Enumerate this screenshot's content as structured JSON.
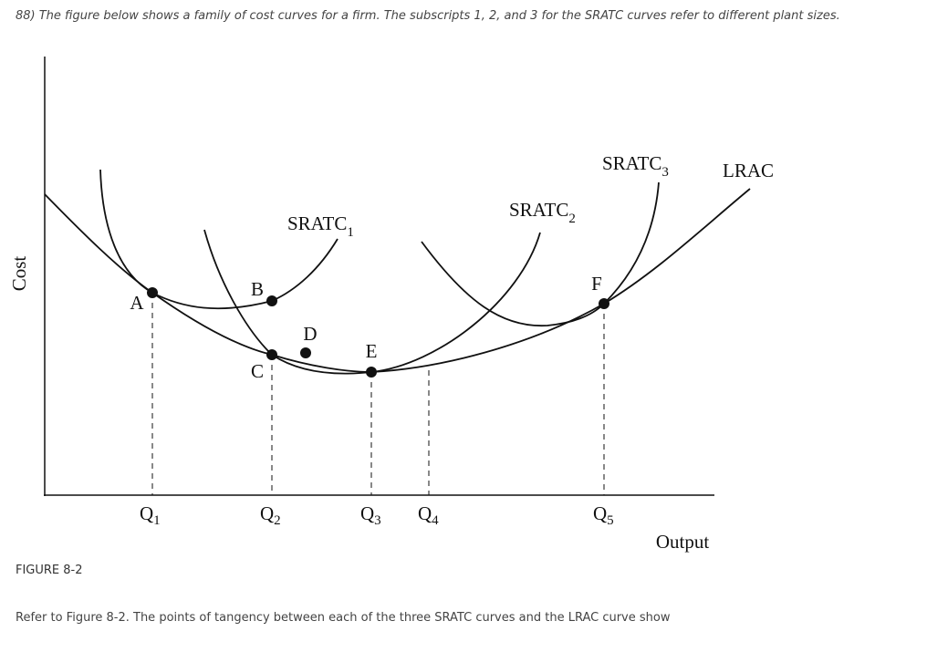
{
  "question": "88) The figure below shows a family of cost curves for a firm. The subscripts 1, 2, and 3 for the SRATC curves refer to different plant sizes.",
  "figure_label": "FIGURE 8-2",
  "prompt": "Refer to Figure 8-2. The points of tangency between each of the three SRATC curves and the LRAC curve show",
  "diagram": {
    "y_axis_label": "Cost",
    "x_axis_label": "Output",
    "curves": [
      {
        "name": "SRATC",
        "sub": "1"
      },
      {
        "name": "SRATC",
        "sub": "2"
      },
      {
        "name": "SRATC",
        "sub": "3"
      },
      {
        "name": "LRAC"
      }
    ],
    "points": [
      "A",
      "B",
      "C",
      "D",
      "E",
      "F"
    ],
    "quantities": [
      {
        "name": "Q",
        "sub": "1"
      },
      {
        "name": "Q",
        "sub": "2"
      },
      {
        "name": "Q",
        "sub": "3"
      },
      {
        "name": "Q",
        "sub": "4"
      },
      {
        "name": "Q",
        "sub": "5"
      }
    ]
  }
}
